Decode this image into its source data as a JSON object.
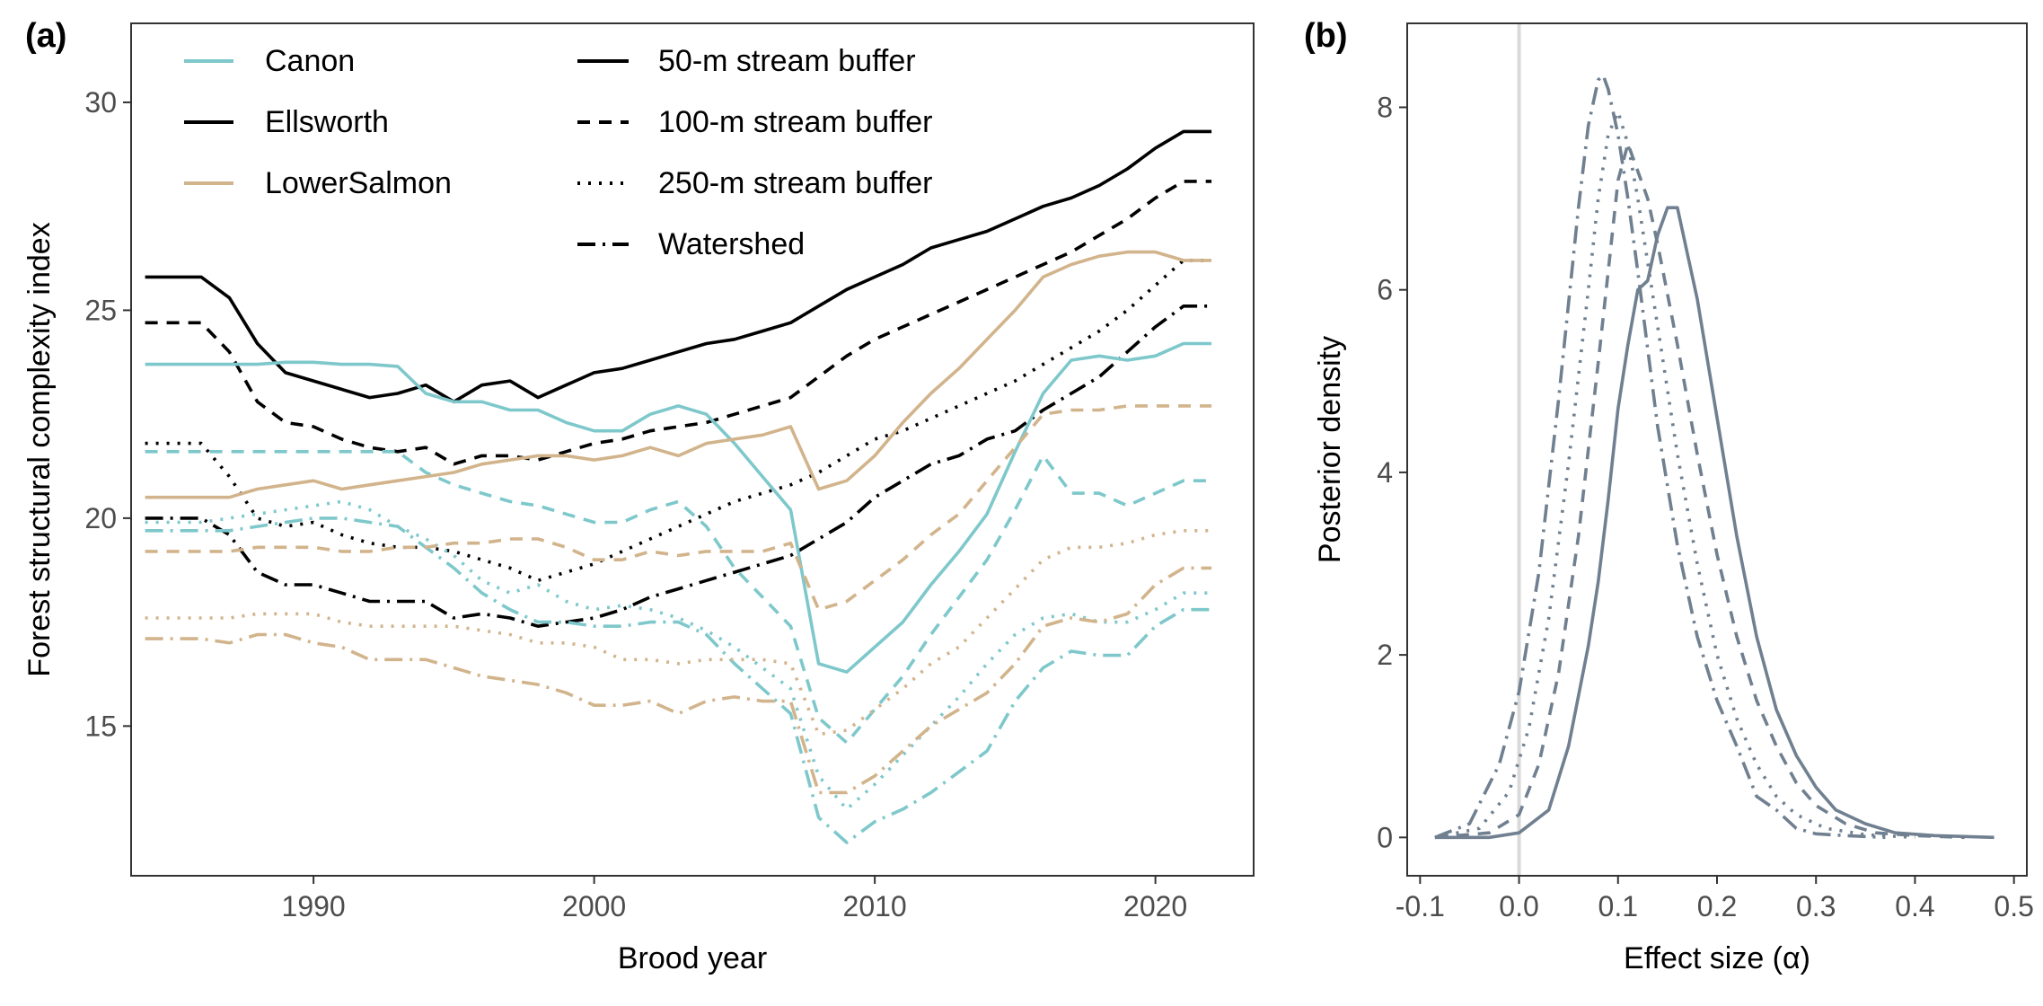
{
  "chart_data": [
    {
      "panel": "(a)",
      "type": "line",
      "xlabel": "Brood year",
      "ylabel": "Forest structural complexity index",
      "xlim": [
        1983.5,
        2023.5
      ],
      "ylim": [
        11.4,
        31.9
      ],
      "x_ticks": [
        1990,
        2000,
        2010,
        2020
      ],
      "y_ticks": [
        15,
        20,
        25,
        30
      ],
      "grid": false,
      "legend_placement": "top-left (inside)",
      "colors": {
        "Canon": "#7EC8CB",
        "Ellsworth": "#000000",
        "LowerSalmon": "#D2B48C"
      },
      "legend": {
        "watersheds": [
          "Canon",
          "Ellsworth",
          "LowerSalmon"
        ],
        "buffers": [
          "50-m stream buffer",
          "100-m stream buffer",
          "250-m stream buffer",
          "Watershed"
        ]
      },
      "x": [
        1984,
        1985,
        1986,
        1987,
        1988,
        1989,
        1990,
        1991,
        1992,
        1993,
        1994,
        1995,
        1996,
        1997,
        1998,
        1999,
        2000,
        2001,
        2002,
        2003,
        2004,
        2005,
        2006,
        2007,
        2008,
        2009,
        2010,
        2011,
        2012,
        2013,
        2014,
        2015,
        2016,
        2017,
        2018,
        2019,
        2020,
        2021,
        2022
      ],
      "series": [
        {
          "watershed": "Ellsworth",
          "buffer": "50-m stream buffer",
          "values": [
            25.8,
            25.8,
            25.8,
            25.3,
            24.2,
            23.5,
            23.3,
            23.1,
            22.9,
            23.0,
            23.2,
            22.8,
            23.2,
            23.3,
            22.9,
            23.2,
            23.5,
            23.6,
            23.8,
            24.0,
            24.2,
            24.3,
            24.5,
            24.7,
            25.1,
            25.5,
            25.8,
            26.1,
            26.5,
            26.7,
            26.9,
            27.2,
            27.5,
            27.7,
            28.0,
            28.4,
            28.9,
            29.3,
            29.3
          ]
        },
        {
          "watershed": "Ellsworth",
          "buffer": "100-m stream buffer",
          "values": [
            24.7,
            24.7,
            24.7,
            24.0,
            22.8,
            22.3,
            22.2,
            21.9,
            21.7,
            21.6,
            21.7,
            21.3,
            21.5,
            21.5,
            21.4,
            21.6,
            21.8,
            21.9,
            22.1,
            22.2,
            22.3,
            22.5,
            22.7,
            22.9,
            23.4,
            23.9,
            24.3,
            24.6,
            24.9,
            25.2,
            25.5,
            25.8,
            26.1,
            26.4,
            26.8,
            27.2,
            27.7,
            28.1,
            28.1
          ]
        },
        {
          "watershed": "Ellsworth",
          "buffer": "250-m stream buffer",
          "values": [
            21.8,
            21.8,
            21.8,
            21.0,
            20.0,
            19.8,
            19.9,
            19.6,
            19.4,
            19.3,
            19.3,
            19.2,
            19.0,
            18.8,
            18.5,
            18.7,
            18.9,
            19.2,
            19.5,
            19.8,
            20.1,
            20.4,
            20.6,
            20.8,
            21.1,
            21.5,
            21.9,
            22.1,
            22.4,
            22.7,
            23.0,
            23.3,
            23.7,
            24.1,
            24.5,
            25.0,
            25.6,
            26.2,
            26.2
          ]
        },
        {
          "watershed": "Ellsworth",
          "buffer": "Watershed",
          "values": [
            20.0,
            20.0,
            20.0,
            19.6,
            18.7,
            18.4,
            18.4,
            18.2,
            18.0,
            18.0,
            18.0,
            17.6,
            17.7,
            17.6,
            17.4,
            17.5,
            17.6,
            17.8,
            18.1,
            18.3,
            18.5,
            18.7,
            18.9,
            19.1,
            19.5,
            19.9,
            20.5,
            20.9,
            21.3,
            21.5,
            21.9,
            22.1,
            22.6,
            23.0,
            23.4,
            24.0,
            24.6,
            25.1,
            25.1
          ]
        },
        {
          "watershed": "Canon",
          "buffer": "50-m stream buffer",
          "values": [
            23.7,
            23.7,
            23.7,
            23.7,
            23.7,
            23.75,
            23.75,
            23.7,
            23.7,
            23.65,
            23.0,
            22.8,
            22.8,
            22.6,
            22.6,
            22.3,
            22.1,
            22.1,
            22.5,
            22.7,
            22.5,
            21.8,
            21.0,
            20.2,
            16.5,
            16.3,
            16.9,
            17.5,
            18.4,
            19.2,
            20.1,
            21.6,
            23.0,
            23.8,
            23.9,
            23.8,
            23.9,
            24.2,
            24.2
          ]
        },
        {
          "watershed": "Canon",
          "buffer": "100-m stream buffer",
          "values": [
            21.6,
            21.6,
            21.6,
            21.6,
            21.6,
            21.6,
            21.6,
            21.6,
            21.6,
            21.6,
            21.1,
            20.8,
            20.6,
            20.4,
            20.3,
            20.1,
            19.9,
            19.9,
            20.2,
            20.4,
            19.8,
            18.8,
            18.1,
            17.4,
            15.2,
            14.6,
            15.4,
            16.2,
            17.2,
            18.1,
            19.0,
            20.2,
            21.5,
            20.6,
            20.6,
            20.3,
            20.6,
            20.9,
            20.9
          ]
        },
        {
          "watershed": "Canon",
          "buffer": "250-m stream buffer",
          "values": [
            19.9,
            19.9,
            19.9,
            20.0,
            20.1,
            20.2,
            20.3,
            20.4,
            20.2,
            19.8,
            19.5,
            19.1,
            18.5,
            18.2,
            18.4,
            18.0,
            17.8,
            17.9,
            17.8,
            17.6,
            17.3,
            16.9,
            16.4,
            15.9,
            13.8,
            13.0,
            13.6,
            14.3,
            15.0,
            15.7,
            16.5,
            17.2,
            17.6,
            17.7,
            17.5,
            17.5,
            17.8,
            18.2,
            18.2
          ]
        },
        {
          "watershed": "Canon",
          "buffer": "Watershed",
          "values": [
            19.7,
            19.7,
            19.7,
            19.7,
            19.8,
            19.9,
            20.0,
            20.0,
            19.9,
            19.8,
            19.3,
            18.8,
            18.2,
            17.8,
            17.5,
            17.5,
            17.4,
            17.4,
            17.5,
            17.5,
            17.2,
            16.5,
            15.9,
            15.3,
            12.8,
            12.2,
            12.7,
            13.0,
            13.4,
            13.9,
            14.4,
            15.6,
            16.4,
            16.8,
            16.7,
            16.7,
            17.4,
            17.8,
            17.8
          ]
        },
        {
          "watershed": "LowerSalmon",
          "buffer": "50-m stream buffer",
          "values": [
            20.5,
            20.5,
            20.5,
            20.5,
            20.7,
            20.8,
            20.9,
            20.7,
            20.8,
            20.9,
            21.0,
            21.1,
            21.3,
            21.4,
            21.5,
            21.5,
            21.4,
            21.5,
            21.7,
            21.5,
            21.8,
            21.9,
            22.0,
            22.2,
            20.7,
            20.9,
            21.5,
            22.3,
            23.0,
            23.6,
            24.3,
            25.0,
            25.8,
            26.1,
            26.3,
            26.4,
            26.4,
            26.2,
            26.2
          ]
        },
        {
          "watershed": "LowerSalmon",
          "buffer": "100-m stream buffer",
          "values": [
            19.2,
            19.2,
            19.2,
            19.2,
            19.3,
            19.3,
            19.3,
            19.2,
            19.2,
            19.3,
            19.3,
            19.4,
            19.4,
            19.5,
            19.5,
            19.3,
            19.0,
            19.0,
            19.2,
            19.1,
            19.2,
            19.2,
            19.2,
            19.4,
            17.8,
            18.0,
            18.5,
            19.0,
            19.6,
            20.1,
            20.9,
            21.7,
            22.5,
            22.6,
            22.6,
            22.7,
            22.7,
            22.7,
            22.7
          ]
        },
        {
          "watershed": "LowerSalmon",
          "buffer": "250-m stream buffer",
          "values": [
            17.6,
            17.6,
            17.6,
            17.6,
            17.7,
            17.7,
            17.7,
            17.5,
            17.4,
            17.4,
            17.4,
            17.4,
            17.3,
            17.2,
            17.0,
            17.0,
            16.9,
            16.6,
            16.6,
            16.5,
            16.6,
            16.6,
            16.6,
            16.5,
            14.8,
            14.9,
            15.4,
            15.9,
            16.5,
            16.9,
            17.6,
            18.3,
            19.0,
            19.3,
            19.3,
            19.4,
            19.6,
            19.7,
            19.7
          ]
        },
        {
          "watershed": "LowerSalmon",
          "buffer": "Watershed",
          "values": [
            17.1,
            17.1,
            17.1,
            17.0,
            17.2,
            17.2,
            17.0,
            16.9,
            16.6,
            16.6,
            16.6,
            16.4,
            16.2,
            16.1,
            16.0,
            15.8,
            15.5,
            15.5,
            15.6,
            15.3,
            15.6,
            15.7,
            15.6,
            15.6,
            13.4,
            13.4,
            13.8,
            14.4,
            15.0,
            15.4,
            15.8,
            16.5,
            17.4,
            17.6,
            17.5,
            17.7,
            18.4,
            18.8,
            18.8
          ]
        }
      ]
    },
    {
      "panel": "(b)",
      "type": "line",
      "xlabel": "Effect size (α)",
      "ylabel": "Posterior density",
      "xlim": [
        -0.113,
        0.513
      ],
      "ylim": [
        -0.42,
        8.92
      ],
      "x_ticks": [
        -0.1,
        0.0,
        0.1,
        0.2,
        0.3,
        0.4,
        0.5
      ],
      "x_tick_labels": [
        "-0.1",
        "0.0",
        "0.1",
        "0.2",
        "0.3",
        "0.4",
        "0.5"
      ],
      "y_ticks": [
        0,
        2,
        4,
        6,
        8
      ],
      "grid": false,
      "reference_line_x": 0.0,
      "line_color": "#708090",
      "series": [
        {
          "buffer": "50-m stream buffer",
          "x": [
            -0.085,
            -0.03,
            0.0,
            0.03,
            0.05,
            0.07,
            0.08,
            0.09,
            0.1,
            0.11,
            0.12,
            0.13,
            0.14,
            0.15,
            0.16,
            0.17,
            0.18,
            0.2,
            0.22,
            0.24,
            0.26,
            0.28,
            0.3,
            0.32,
            0.35,
            0.38,
            0.42,
            0.48
          ],
          "y": [
            0.0,
            0.0,
            0.05,
            0.3,
            1.0,
            2.1,
            2.8,
            3.7,
            4.7,
            5.4,
            6.0,
            6.1,
            6.6,
            6.9,
            6.9,
            6.4,
            5.9,
            4.6,
            3.3,
            2.2,
            1.4,
            0.9,
            0.55,
            0.3,
            0.15,
            0.05,
            0.02,
            0.0
          ]
        },
        {
          "buffer": "100-m stream buffer",
          "x": [
            -0.085,
            -0.03,
            0.0,
            0.02,
            0.04,
            0.06,
            0.08,
            0.09,
            0.1,
            0.11,
            0.12,
            0.13,
            0.14,
            0.16,
            0.18,
            0.2,
            0.22,
            0.24,
            0.26,
            0.28,
            0.3,
            0.33,
            0.36,
            0.4,
            0.45
          ],
          "y": [
            0.0,
            0.05,
            0.25,
            0.8,
            1.8,
            3.3,
            5.2,
            6.2,
            7.2,
            7.6,
            7.3,
            7.0,
            6.5,
            5.4,
            4.2,
            3.1,
            2.2,
            1.5,
            1.0,
            0.6,
            0.35,
            0.15,
            0.05,
            0.02,
            0.0
          ]
        },
        {
          "buffer": "250-m stream buffer",
          "x": [
            -0.085,
            -0.04,
            -0.01,
            0.01,
            0.03,
            0.05,
            0.07,
            0.08,
            0.09,
            0.1,
            0.11,
            0.12,
            0.14,
            0.16,
            0.18,
            0.2,
            0.22,
            0.24,
            0.26,
            0.28,
            0.31,
            0.35,
            0.4
          ],
          "y": [
            0.0,
            0.1,
            0.5,
            1.2,
            2.4,
            4.1,
            6.0,
            7.0,
            7.7,
            7.95,
            7.6,
            7.0,
            5.6,
            4.2,
            3.0,
            2.0,
            1.3,
            0.8,
            0.45,
            0.25,
            0.1,
            0.03,
            0.0
          ]
        },
        {
          "buffer": "Watershed",
          "x": [
            -0.085,
            -0.05,
            -0.02,
            0.0,
            0.02,
            0.04,
            0.06,
            0.07,
            0.08,
            0.085,
            0.09,
            0.1,
            0.11,
            0.12,
            0.14,
            0.16,
            0.18,
            0.2,
            0.22,
            0.24,
            0.26,
            0.28,
            0.3,
            0.33,
            0.37
          ],
          "y": [
            0.0,
            0.15,
            0.8,
            1.6,
            2.9,
            4.8,
            6.9,
            7.8,
            8.3,
            8.35,
            8.2,
            7.7,
            7.0,
            6.2,
            4.5,
            3.2,
            2.2,
            1.5,
            1.0,
            0.45,
            0.3,
            0.1,
            0.04,
            0.02,
            0.0
          ]
        }
      ]
    }
  ]
}
